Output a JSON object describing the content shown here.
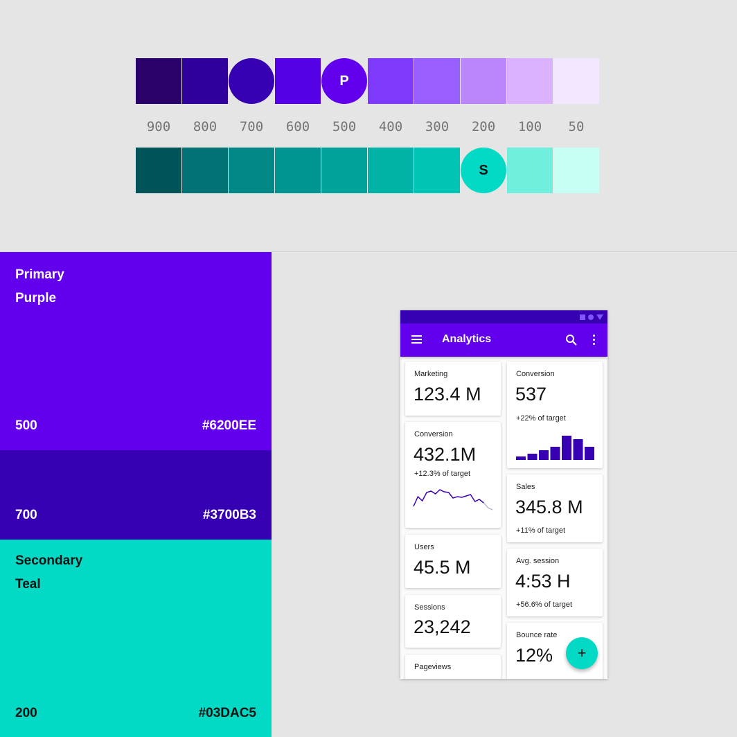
{
  "palette": {
    "primary_swatches": [
      {
        "tone": "900",
        "color": "#2a0069",
        "shape": "square",
        "letter": ""
      },
      {
        "tone": "800",
        "color": "#30009c",
        "shape": "square",
        "letter": ""
      },
      {
        "tone": "700",
        "color": "#3700b3",
        "shape": "circle",
        "letter": ""
      },
      {
        "tone": "600",
        "color": "#5600e8",
        "shape": "square",
        "letter": ""
      },
      {
        "tone": "500",
        "color": "#6200ee",
        "shape": "circle",
        "letter": "P",
        "text_color": "#ffffff"
      },
      {
        "tone": "400",
        "color": "#7f39fb",
        "shape": "square",
        "letter": ""
      },
      {
        "tone": "300",
        "color": "#985eff",
        "shape": "square",
        "letter": ""
      },
      {
        "tone": "200",
        "color": "#bb86fc",
        "shape": "square",
        "letter": ""
      },
      {
        "tone": "100",
        "color": "#dbb2ff",
        "shape": "square",
        "letter": ""
      },
      {
        "tone": "50",
        "color": "#f2e7fe",
        "shape": "square",
        "letter": ""
      }
    ],
    "tone_labels": [
      "900",
      "800",
      "700",
      "600",
      "500",
      "400",
      "300",
      "200",
      "100",
      "50"
    ],
    "secondary_swatches": [
      {
        "color": "#005457",
        "shape": "square",
        "letter": ""
      },
      {
        "color": "#017374",
        "shape": "square",
        "letter": ""
      },
      {
        "color": "#018786",
        "shape": "square",
        "letter": ""
      },
      {
        "color": "#019592",
        "shape": "square",
        "letter": ""
      },
      {
        "color": "#01a299",
        "shape": "square",
        "letter": ""
      },
      {
        "color": "#00b3a6",
        "shape": "square",
        "letter": ""
      },
      {
        "color": "#00c4b4",
        "shape": "square",
        "letter": ""
      },
      {
        "color": "#03dac5",
        "shape": "circle",
        "letter": "S",
        "text_color": "#111111"
      },
      {
        "color": "#70efde",
        "shape": "square",
        "letter": ""
      },
      {
        "color": "#c8fff4",
        "shape": "square",
        "letter": ""
      }
    ]
  },
  "blocks": {
    "primary": {
      "name_line1": "Primary",
      "name_line2": "Purple",
      "tone": "500",
      "hex": "#6200EE"
    },
    "primary_dark": {
      "tone": "700",
      "hex": "#3700B3"
    },
    "secondary": {
      "name_line1": "Secondary",
      "name_line2": "Teal",
      "tone": "200",
      "hex": "#03DAC5"
    }
  },
  "app": {
    "title": "Analytics",
    "icons": {
      "menu": "menu-icon",
      "search": "search-icon",
      "more": "more-vert-icon",
      "fab": "add-icon"
    },
    "fab_label": "+",
    "cards": {
      "marketing": {
        "title": "Marketing",
        "value": "123.4 M"
      },
      "conversion_left": {
        "title": "Conversion",
        "value": "432.1M",
        "sub": "+12.3% of target",
        "sparkline": [
          20,
          34,
          28,
          40,
          42,
          38,
          44,
          41,
          40,
          32,
          34,
          33,
          35,
          37,
          27,
          30,
          25,
          18,
          15
        ]
      },
      "users": {
        "title": "Users",
        "value": "45.5 M"
      },
      "sessions": {
        "title": "Sessions",
        "value": "23,242"
      },
      "pageviews": {
        "title": "Pageviews"
      },
      "conversion_right": {
        "title": "Conversion",
        "value": "537",
        "sub": "+22% of target",
        "bars": [
          5,
          9,
          14,
          19,
          35,
          30,
          19
        ]
      },
      "sales": {
        "title": "Sales",
        "value": "345.8 M",
        "sub": "+11% of target"
      },
      "avg_session": {
        "title": "Avg. session",
        "value": "4:53 H",
        "sub": "+56.6% of target"
      },
      "bounce_rate": {
        "title": "Bounce rate",
        "value": "12%"
      }
    }
  }
}
